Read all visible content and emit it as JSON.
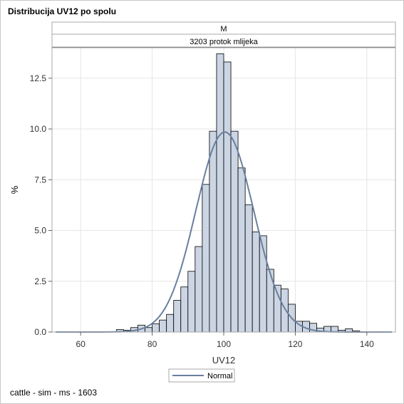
{
  "title": "Distribucija UV12 po spolu",
  "footnote": "cattle - sim - ms - 1603",
  "panel": {
    "header_row1": "M",
    "header_row2": "3203 protok mlijeka"
  },
  "chart_data": {
    "type": "histogram",
    "xlabel": "UV12",
    "ylabel": "%",
    "xlim": [
      52,
      148
    ],
    "ylim": [
      0,
      14.0
    ],
    "xticks": [
      60,
      80,
      100,
      120,
      140
    ],
    "yticks": [
      0.0,
      2.5,
      5.0,
      7.5,
      10.0,
      12.5
    ],
    "grid": true,
    "bin_width": 2,
    "bins": [
      {
        "x": 71,
        "value": 0.12
      },
      {
        "x": 73,
        "value": 0.09
      },
      {
        "x": 75,
        "value": 0.22
      },
      {
        "x": 77,
        "value": 0.34
      },
      {
        "x": 79,
        "value": 0.22
      },
      {
        "x": 81,
        "value": 0.4
      },
      {
        "x": 83,
        "value": 0.59
      },
      {
        "x": 85,
        "value": 0.87
      },
      {
        "x": 87,
        "value": 1.56
      },
      {
        "x": 89,
        "value": 2.22
      },
      {
        "x": 91,
        "value": 2.99
      },
      {
        "x": 93,
        "value": 4.21
      },
      {
        "x": 95,
        "value": 7.27
      },
      {
        "x": 97,
        "value": 9.89
      },
      {
        "x": 99,
        "value": 13.7
      },
      {
        "x": 101,
        "value": 13.3
      },
      {
        "x": 103,
        "value": 9.89
      },
      {
        "x": 105,
        "value": 8.08
      },
      {
        "x": 107,
        "value": 6.27
      },
      {
        "x": 109,
        "value": 4.93
      },
      {
        "x": 111,
        "value": 4.74
      },
      {
        "x": 113,
        "value": 3.09
      },
      {
        "x": 115,
        "value": 2.31
      },
      {
        "x": 117,
        "value": 2.12
      },
      {
        "x": 119,
        "value": 1.37
      },
      {
        "x": 121,
        "value": 0.53
      },
      {
        "x": 123,
        "value": 0.53
      },
      {
        "x": 125,
        "value": 0.43
      },
      {
        "x": 127,
        "value": 0.19
      },
      {
        "x": 129,
        "value": 0.28
      },
      {
        "x": 131,
        "value": 0.28
      },
      {
        "x": 133,
        "value": 0.09
      },
      {
        "x": 135,
        "value": 0.16
      },
      {
        "x": 137,
        "value": 0.06
      }
    ],
    "normal_curve": {
      "name": "Normal",
      "mean": 100.3,
      "sd": 8.1
    },
    "legend": {
      "position": "bottom",
      "entries": [
        "Normal"
      ]
    },
    "colors": {
      "bar_fill": "#cbd5e3",
      "bar_stroke": "#000000",
      "curve": "#6a7fa0",
      "grid": "#e6e6e6",
      "axis": "#aaaaaa"
    }
  }
}
